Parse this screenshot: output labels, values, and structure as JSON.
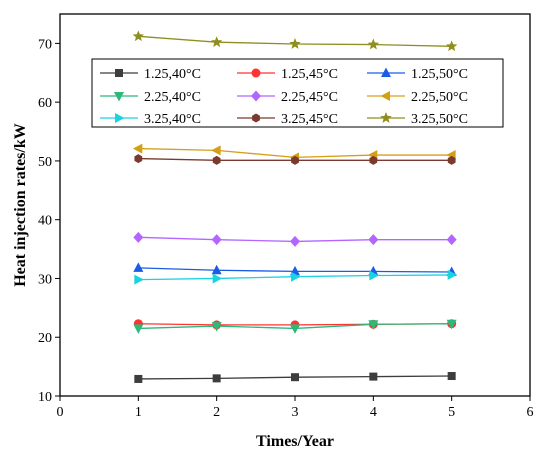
{
  "chart_data": {
    "type": "line",
    "title": "",
    "xlabel": "Times/Year",
    "ylabel": "Heat injection rates/kW",
    "xlim": [
      0,
      6
    ],
    "ylim": [
      10,
      75
    ],
    "xticks": [
      0,
      1,
      2,
      3,
      4,
      5,
      6
    ],
    "yticks": [
      10,
      20,
      30,
      40,
      50,
      60,
      70
    ],
    "grid": false,
    "legend": "top-center, 3 columns",
    "x": [
      1,
      2,
      3,
      4,
      5
    ],
    "series": [
      {
        "name": "1.25,40°C",
        "color": "#3d3d3d",
        "marker": "square",
        "values": [
          12.9,
          13.0,
          13.2,
          13.3,
          13.4
        ]
      },
      {
        "name": "1.25,45°C",
        "color": "#ff3333",
        "marker": "circle",
        "values": [
          22.3,
          22.1,
          22.1,
          22.2,
          22.3
        ]
      },
      {
        "name": "1.25,50°C",
        "color": "#1a5ce6",
        "marker": "triangle-up",
        "values": [
          31.8,
          31.4,
          31.2,
          31.2,
          31.1
        ]
      },
      {
        "name": "2.25,40°C",
        "color": "#2eb87a",
        "marker": "triangle-down",
        "values": [
          21.5,
          21.9,
          21.5,
          22.2,
          22.3
        ]
      },
      {
        "name": "2.25,45°C",
        "color": "#b266ff",
        "marker": "diamond",
        "values": [
          37.0,
          36.6,
          36.3,
          36.6,
          36.6
        ]
      },
      {
        "name": "2.25,50°C",
        "color": "#d4a017",
        "marker": "triangle-left",
        "values": [
          52.1,
          51.8,
          50.6,
          51.0,
          51.0
        ]
      },
      {
        "name": "3.25,40°C",
        "color": "#19d3e0",
        "marker": "triangle-right",
        "values": [
          29.8,
          30.0,
          30.3,
          30.5,
          30.6
        ]
      },
      {
        "name": "3.25,45°C",
        "color": "#7a3b2e",
        "marker": "hexagon",
        "values": [
          50.4,
          50.1,
          50.1,
          50.1,
          50.1
        ]
      },
      {
        "name": "3.25,50°C",
        "color": "#8f8f1f",
        "marker": "star",
        "values": [
          71.2,
          70.2,
          69.9,
          69.8,
          69.5
        ]
      }
    ]
  }
}
